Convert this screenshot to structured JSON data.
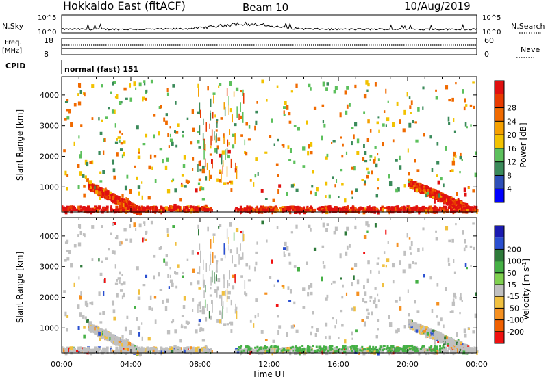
{
  "header": {
    "title": "Hokkaido East (fitACF)",
    "beam": "Beam 10",
    "date": "10/Aug/2019"
  },
  "left_labels": {
    "nsky": "N.Sky",
    "freq": "Freq.",
    "mhz": "[MHz]",
    "cpid": "CPID"
  },
  "right_labels": {
    "nsearch": "N.Search",
    "nave": "Nave"
  },
  "cpid_value": "normal (fast) 151",
  "nsky_ticks": {
    "top": "10^5",
    "bottom": "10^0"
  },
  "freq_ticks": {
    "top": "18",
    "bottom": "8"
  },
  "nave_ticks": {
    "top": "60",
    "bottom": "0"
  },
  "x_ticks": [
    "00:00",
    "04:00",
    "08:00",
    "12:00",
    "16:00",
    "20:00",
    "00:00"
  ],
  "x_label": "Time UT",
  "colors": {
    "power": [
      "#0000ff",
      "#2e4fb8",
      "#3a8a5a",
      "#5cc05c",
      "#f2c200",
      "#f5a000",
      "#f06a00",
      "#e83a00",
      "#e01010"
    ],
    "velocity": [
      "#1a1ab0",
      "#2a4fd0",
      "#2e7a3a",
      "#45b045",
      "#7fd04f",
      "#c0c0c0",
      "#f0c040",
      "#f59020",
      "#f06000",
      "#f01010"
    ],
    "ground": "#b0b0b0"
  },
  "chart_data": [
    {
      "type": "heatmap",
      "name": "power",
      "ylabel": "Slant Range [km]",
      "yticks": [
        1000,
        2000,
        3000,
        4000
      ],
      "ylim": [
        180,
        4600
      ],
      "xlim_hours": [
        0,
        24
      ],
      "colorbar_label": "Power [dB]",
      "colorbar_ticks": [
        "4",
        "8",
        "12",
        "16",
        "20",
        "24",
        "28"
      ],
      "scatter_regions": [
        {
          "t0": 0,
          "t1": 8.5,
          "r0": 250,
          "r1": 1200,
          "level": "strong"
        },
        {
          "t0": 3.5,
          "t1": 6,
          "r0": 2000,
          "r1": 2600,
          "level": "weak"
        },
        {
          "t0": 8.5,
          "t1": 11,
          "r0": 1600,
          "r1": 3100,
          "level": "strong"
        },
        {
          "t0": 10.5,
          "t1": 15.5,
          "r0": 700,
          "r1": 1300,
          "level": "strong"
        },
        {
          "t0": 17,
          "t1": 18.3,
          "r0": 2800,
          "r1": 3300,
          "level": "medium"
        },
        {
          "t0": 19,
          "t1": 24,
          "r0": 400,
          "r1": 1300,
          "level": "strong"
        },
        {
          "t0": 19,
          "t1": 22,
          "r0": 1700,
          "r1": 2600,
          "level": "weak"
        }
      ]
    },
    {
      "type": "heatmap",
      "name": "velocity",
      "ylabel": "Slant Range [km]",
      "yticks": [
        1000,
        2000,
        3000,
        4000
      ],
      "ylim": [
        180,
        4600
      ],
      "xlim_hours": [
        0,
        24
      ],
      "colorbar_label": "Velocity [m s^-1]",
      "colorbar_ticks": [
        "200",
        "100",
        "50",
        "15",
        "-15",
        "-50",
        "-100",
        "-200"
      ]
    }
  ]
}
